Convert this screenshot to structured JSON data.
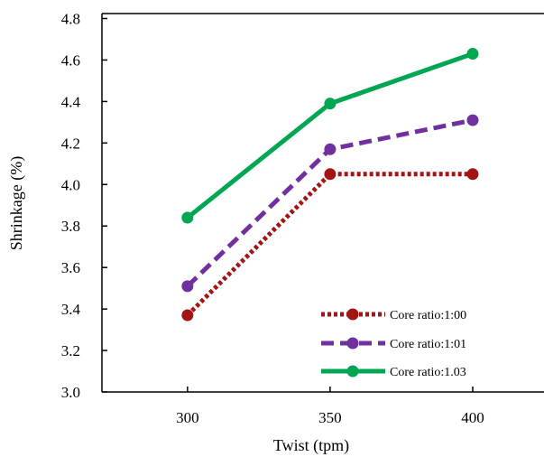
{
  "chart_data": {
    "type": "line",
    "x": [
      300,
      350,
      400
    ],
    "x_tick_labels": [
      "300",
      "350",
      "400"
    ],
    "y_tick_labels": [
      "3.0",
      "3.2",
      "3.4",
      "3.6",
      "3.8",
      "4.0",
      "4.2",
      "4.4",
      "4.6",
      "4.8"
    ],
    "series": [
      {
        "name": "Core ratio:1:00",
        "values": [
          3.37,
          4.05,
          4.05
        ],
        "color": "#a31515",
        "line_style": "dotted",
        "marker": "circle"
      },
      {
        "name": "Core ratio:1:01",
        "values": [
          3.51,
          4.17,
          4.31
        ],
        "color": "#7030a0",
        "line_style": "dashed",
        "marker": "circle"
      },
      {
        "name": "Core ratio:1.03",
        "values": [
          3.84,
          4.39,
          4.63
        ],
        "color": "#00a651",
        "line_style": "solid",
        "marker": "circle"
      }
    ],
    "xlabel": "Twist (tpm)",
    "ylabel": "Shrinkage (%)",
    "xlim": [
      270,
      425
    ],
    "ylim": [
      3.0,
      4.8
    ],
    "grid": false,
    "legend_position": "bottom-right"
  }
}
